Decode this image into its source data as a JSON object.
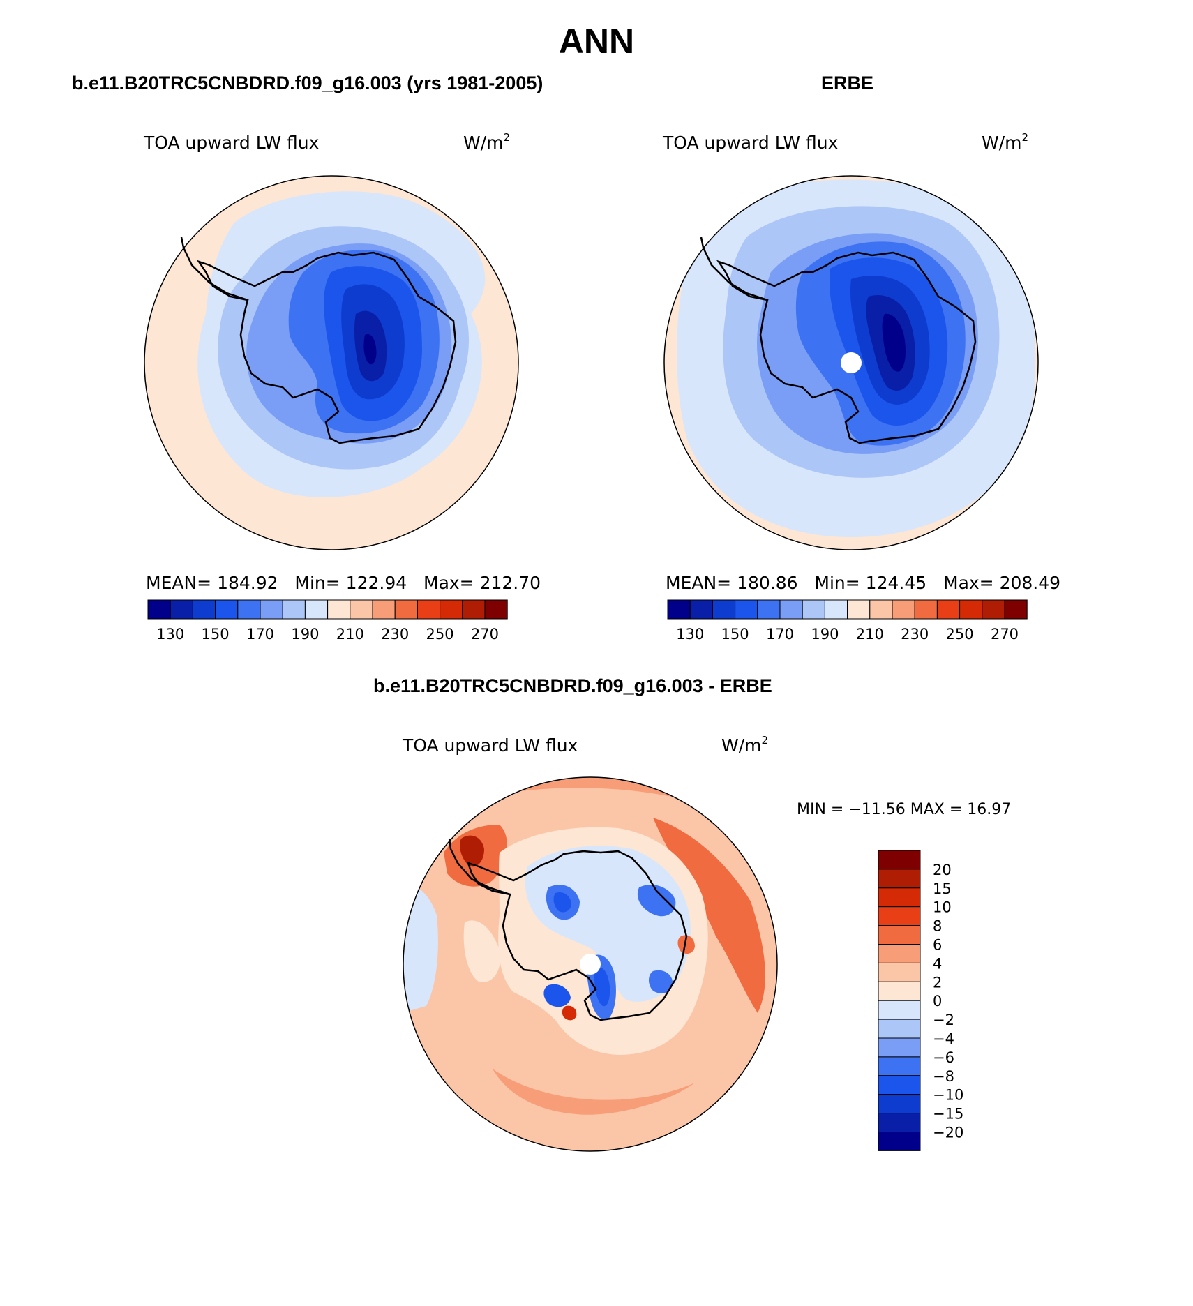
{
  "figure_title": "ANN",
  "panels": [
    {
      "case_title": "b.e11.B20TRC5CNBDRD.f09_g16.003 (yrs 1981-2005)",
      "variable": "TOA upward LW flux",
      "units": "W/m",
      "units_exp": "2",
      "stats": {
        "mean_label": "MEAN=",
        "mean": "184.92",
        "min_label": "Min=",
        "min": "122.94",
        "max_label": "Max=",
        "max": "212.70"
      }
    },
    {
      "case_title": "ERBE",
      "variable": "TOA upward LW flux",
      "units": "W/m",
      "units_exp": "2",
      "stats": {
        "mean_label": "MEAN=",
        "mean": "180.86",
        "min_label": "Min=",
        "min": "124.45",
        "max_label": "Max=",
        "max": "208.49"
      }
    }
  ],
  "diff_panel": {
    "case_title": "b.e11.B20TRC5CNBDRD.f09_g16.003 - ERBE",
    "variable": "TOA upward LW flux",
    "units": "W/m",
    "units_exp": "2",
    "minmax_text": "MIN = −11.56 MAX =  16.97"
  },
  "abs_colorbar": {
    "colors": [
      "#00008b",
      "#0a1fa8",
      "#0d3ccf",
      "#1c55ec",
      "#3d72f2",
      "#7a9ef5",
      "#adc6f8",
      "#d8e6fb",
      "#fde6d3",
      "#fbc6a8",
      "#f79e79",
      "#f06b40",
      "#e83f17",
      "#d42a05",
      "#b01d05",
      "#7e0000"
    ],
    "tick_labels": [
      "130",
      "150",
      "170",
      "190",
      "210",
      "230",
      "250",
      "270"
    ]
  },
  "diff_colorbar": {
    "colors_top_to_bottom": [
      "#7e0000",
      "#b01d05",
      "#d42a05",
      "#e83f17",
      "#f06b40",
      "#f79e79",
      "#fbc6a8",
      "#fde6d3",
      "#d8e6fb",
      "#adc6f8",
      "#7a9ef5",
      "#3d72f2",
      "#1c55ec",
      "#0d3ccf",
      "#0a1fa8",
      "#00008b"
    ],
    "tick_labels": [
      "20",
      "15",
      "10",
      "8",
      "6",
      "4",
      "2",
      "0",
      "−2",
      "−4",
      "−6",
      "−8",
      "−10",
      "−15",
      "−20"
    ]
  }
}
